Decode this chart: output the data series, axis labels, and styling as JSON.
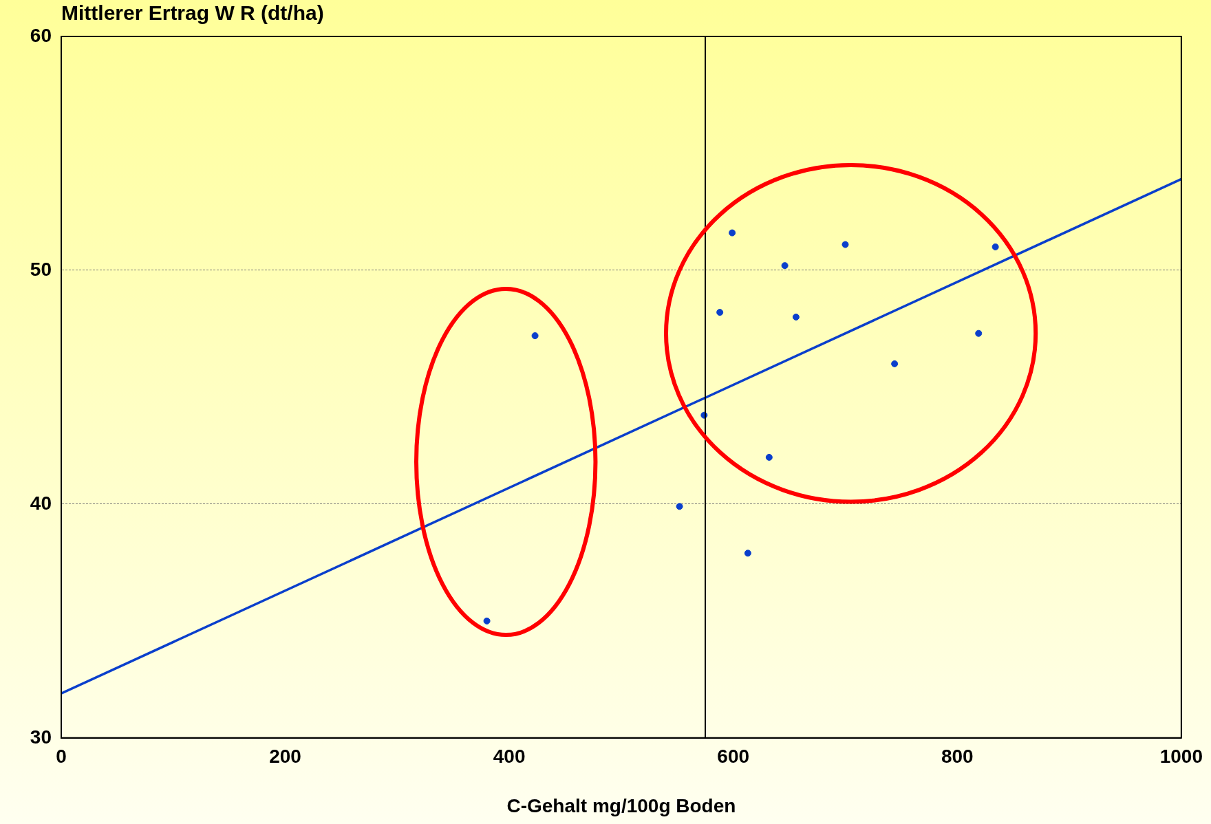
{
  "chart_data": {
    "type": "scatter",
    "ylabel": "Mittlerer Ertrag W R (dt/ha)",
    "xlabel": "C-Gehalt mg/100g Boden",
    "xlim": [
      0,
      1000
    ],
    "xticks": [
      0,
      200,
      400,
      600,
      800,
      1000
    ],
    "ylim": [
      30,
      60
    ],
    "yticks": [
      30,
      40,
      50,
      60
    ],
    "grid": "y",
    "series": [
      {
        "marker": "circle",
        "color": "#0a3fcc",
        "x": [
          380,
          423,
          552,
          574,
          588,
          599,
          613,
          632,
          646,
          656,
          700,
          744,
          819,
          834
        ],
        "values": [
          35.0,
          47.2,
          39.9,
          43.8,
          48.2,
          51.6,
          37.9,
          42.0,
          50.2,
          48.0,
          51.1,
          46.0,
          47.3,
          51.0
        ]
      },
      {
        "type": "line",
        "color": "#0a3fcc",
        "x": [
          0,
          1000
        ],
        "values": [
          31.9,
          53.9
        ]
      }
    ],
    "ref_lines": [
      {
        "axis": "x",
        "value": 575,
        "color": "#000000"
      }
    ]
  }
}
